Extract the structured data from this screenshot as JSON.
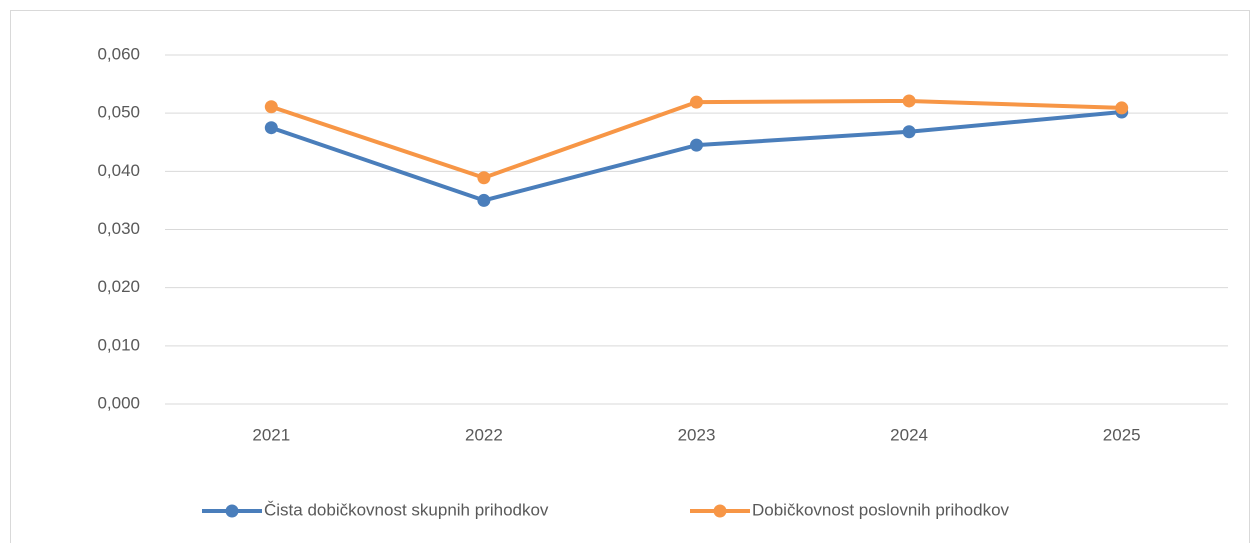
{
  "chart_data": {
    "type": "line",
    "categories": [
      "2021",
      "2022",
      "2023",
      "2024",
      "2025"
    ],
    "series": [
      {
        "name": "Čista dobičkovnost skupnih prihodkov",
        "color": "#4a7ebb",
        "values": [
          0.0475,
          0.035,
          0.0445,
          0.0468,
          0.0502
        ]
      },
      {
        "name": "Dobičkovnost poslovnih prihodkov",
        "color": "#f79646",
        "values": [
          0.0511,
          0.0389,
          0.0519,
          0.0521,
          0.0509
        ]
      }
    ],
    "ylim": [
      0,
      0.06
    ],
    "yticks": [
      {
        "value": 0,
        "label": "0,000"
      },
      {
        "value": 0.01,
        "label": "0,010"
      },
      {
        "value": 0.02,
        "label": "0,020"
      },
      {
        "value": 0.03,
        "label": "0,030"
      },
      {
        "value": 0.04,
        "label": "0,040"
      },
      {
        "value": 0.05,
        "label": "0,050"
      },
      {
        "value": 0.06,
        "label": "0,060"
      }
    ],
    "grid": true,
    "legend": "bottom"
  }
}
